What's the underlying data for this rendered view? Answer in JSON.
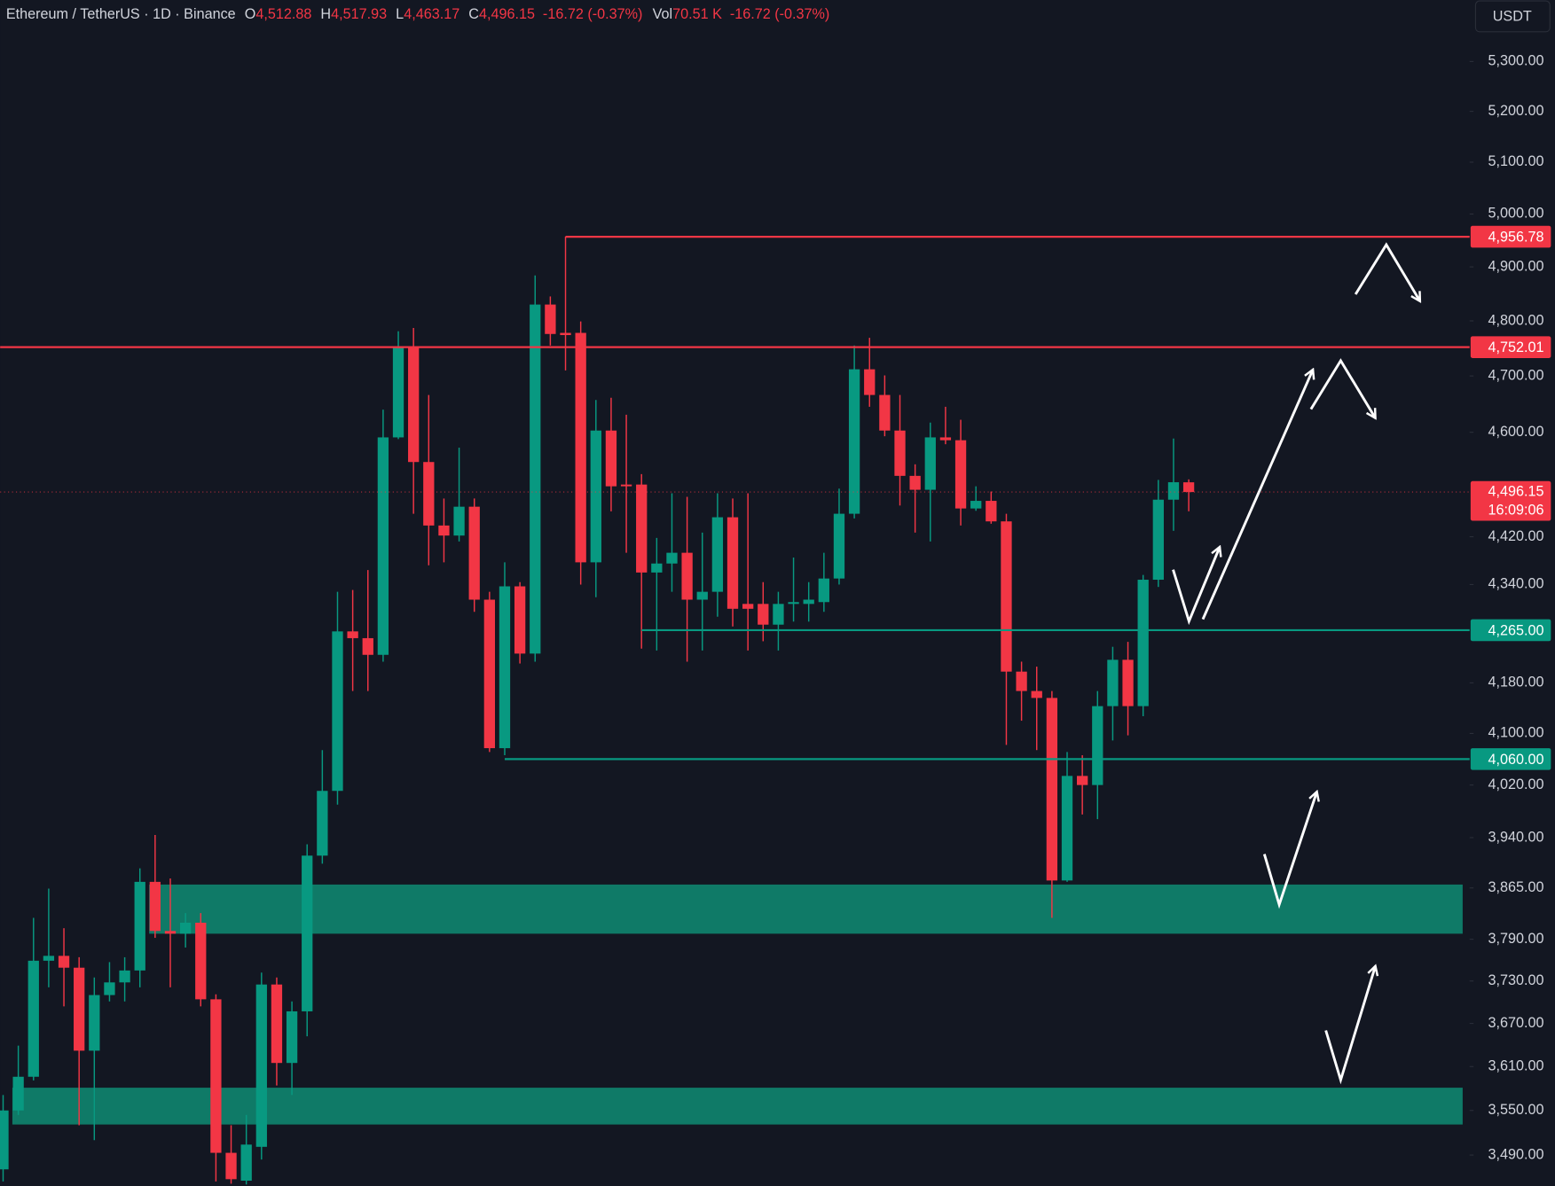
{
  "chart_data": {
    "type": "candlestick",
    "title": "Ethereum / TetherUS · 1D · Binance",
    "header": {
      "fields": [
        {
          "key": "O",
          "value": "4,512.88"
        },
        {
          "key": "H",
          "value": "4,517.93"
        },
        {
          "key": "L",
          "value": "4,463.17"
        },
        {
          "key": "C",
          "value": "4,496.15"
        }
      ],
      "change": "-16.72 (-0.37%)",
      "volume": {
        "key": "Vol",
        "value": "70.51 K",
        "change": "-16.72 (-0.37%)"
      }
    },
    "currency": "USDT",
    "log_scale": true,
    "grid": false,
    "up_color": "#089981",
    "down_color": "#f23645",
    "ylim": [
      3449,
      5426
    ],
    "yticks": [
      {
        "value": 5300,
        "label": "5,300.00"
      },
      {
        "value": 5200,
        "label": "5,200.00"
      },
      {
        "value": 5100,
        "label": "5,100.00"
      },
      {
        "value": 5000,
        "label": "5,000.00"
      },
      {
        "value": 4900,
        "label": "4,900.00"
      },
      {
        "value": 4800,
        "label": "4,800.00"
      },
      {
        "value": 4700,
        "label": "4,700.00"
      },
      {
        "value": 4600,
        "label": "4,600.00"
      },
      {
        "value": 4420,
        "label": "4,420.00"
      },
      {
        "value": 4340,
        "label": "4,340.00"
      },
      {
        "value": 4180,
        "label": "4,180.00"
      },
      {
        "value": 4100,
        "label": "4,100.00"
      },
      {
        "value": 4020,
        "label": "4,020.00"
      },
      {
        "value": 3940,
        "label": "3,940.00"
      },
      {
        "value": 3865,
        "label": "3,865.00"
      },
      {
        "value": 3790,
        "label": "3,790.00"
      },
      {
        "value": 3730,
        "label": "3,730.00"
      },
      {
        "value": 3670,
        "label": "3,670.00"
      },
      {
        "value": 3610,
        "label": "3,610.00"
      },
      {
        "value": 3550,
        "label": "3,550.00"
      },
      {
        "value": 3490,
        "label": "3,490.00"
      }
    ],
    "open": [
      3471,
      3550,
      3596,
      3759,
      3766,
      3749,
      3632,
      3710,
      3728,
      3745,
      3874,
      3802,
      3798,
      3814,
      3704,
      3493,
      3456,
      3501,
      3725,
      3615,
      3687,
      3913,
      4011,
      4263,
      4252,
      4225,
      4591,
      4751,
      4548,
      4439,
      4422,
      4471,
      4315,
      4077,
      4337,
      4227,
      4830,
      4778,
      4778,
      4377,
      4603,
      4509,
      4509,
      4360,
      4375,
      4393,
      4315,
      4328,
      4453,
      4308,
      4308,
      4274,
      4308,
      4308,
      4311,
      4350,
      4459,
      4712,
      4666,
      4603,
      4524,
      4500,
      4591,
      4586,
      4468,
      4481,
      4446,
      4198,
      4167,
      4156,
      3876,
      4034,
      4020,
      4143,
      4217,
      4143,
      4348,
      4483,
      4512.88
    ],
    "high": [
      3571,
      3639,
      3821,
      3864,
      3806,
      3764,
      3735,
      3757,
      3764,
      3894,
      3944,
      3879,
      3828,
      3828,
      3711,
      3530,
      3544,
      3742,
      3735,
      3701,
      3930,
      4074,
      4328,
      4331,
      4364,
      4640,
      4781,
      4787,
      4666,
      4485,
      4573,
      4485,
      4328,
      4377,
      4344,
      4884,
      4845,
      4957,
      4799,
      4657,
      4661,
      4631,
      4527,
      4418,
      4494,
      4488,
      4427,
      4494,
      4485,
      4494,
      4344,
      4328,
      4385,
      4344,
      4393,
      4502,
      4755,
      4769,
      4701,
      4666,
      4544,
      4617,
      4645,
      4622,
      4506,
      4497,
      4459,
      4214,
      4206,
      4167,
      4071,
      4066,
      4167,
      4238,
      4246,
      4356,
      4517,
      4589,
      4517.93
    ],
    "low": [
      3455,
      3544,
      3591,
      3721,
      3694,
      3530,
      3510,
      3701,
      3701,
      3721,
      3792,
      3721,
      3778,
      3694,
      3455,
      3452,
      3451,
      3484,
      3584,
      3571,
      3652,
      3901,
      3990,
      4167,
      4167,
      4214,
      4588,
      4459,
      4372,
      4377,
      4412,
      4295,
      4071,
      4066,
      4211,
      4214,
      4755,
      4710,
      4340,
      4319,
      4463,
      4393,
      4235,
      4232,
      4328,
      4214,
      4232,
      4287,
      4271,
      4232,
      4247,
      4232,
      4279,
      4279,
      4295,
      4340,
      4451,
      4645,
      4593,
      4473,
      4427,
      4412,
      4579,
      4439,
      4464,
      4442,
      4082,
      4120,
      4074,
      3821,
      3874,
      3975,
      3968,
      4089,
      4097,
      4127,
      4336,
      4430,
      4463.17
    ],
    "close": [
      3550,
      3596,
      3759,
      3766,
      3749,
      3632,
      3710,
      3728,
      3745,
      3874,
      3802,
      3798,
      3814,
      3704,
      3493,
      3458,
      3504,
      3725,
      3615,
      3687,
      3913,
      4011,
      4263,
      4252,
      4225,
      4591,
      4751,
      4548,
      4439,
      4422,
      4471,
      4315,
      4077,
      4337,
      4227,
      4830,
      4776,
      4774,
      4377,
      4603,
      4506,
      4506,
      4360,
      4375,
      4393,
      4315,
      4328,
      4453,
      4300,
      4300,
      4274,
      4308,
      4311,
      4315,
      4350,
      4459,
      4712,
      4666,
      4603,
      4524,
      4500,
      4591,
      4586,
      4468,
      4481,
      4446,
      4198,
      4167,
      4156,
      3876,
      4034,
      4020,
      4143,
      4217,
      4143,
      4348,
      4483,
      4513,
      4496.15
    ],
    "levels": [
      {
        "value": 4956.78,
        "label": "4,956.78",
        "color": "#f23645",
        "start": 37
      },
      {
        "value": 4752.01,
        "label": "4,752.01",
        "color": "#f23645"
      },
      {
        "value": 4265.0,
        "label": "4,265.00",
        "color": "#089981",
        "start": 42
      },
      {
        "value": 4060.0,
        "label": "4,060.00",
        "color": "#089981",
        "start": 33
      }
    ],
    "zones": [
      {
        "low": 3798,
        "high": 3870,
        "color": "#0f7a67",
        "start": 10
      },
      {
        "low": 3531,
        "high": 3581,
        "color": "#0f7a67",
        "start": 1
      }
    ],
    "last_price": {
      "value": 4496.15,
      "label": "4,496.15",
      "countdown": "16:09:06",
      "color": "#f23645"
    }
  }
}
